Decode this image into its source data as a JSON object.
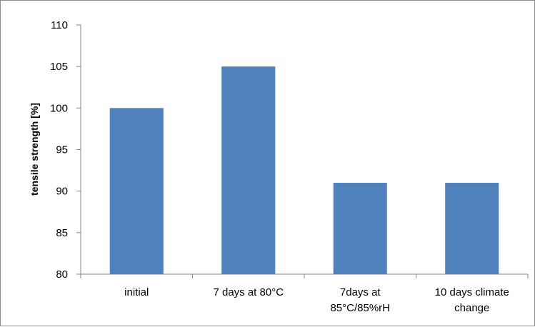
{
  "chart_data": {
    "type": "bar",
    "title": "",
    "xlabel": "",
    "ylabel": "tensile strength [%]",
    "categories": [
      [
        "initial"
      ],
      [
        "7 days at 80°C"
      ],
      [
        "7days at",
        "85°C/85%rH"
      ],
      [
        "10 days climate",
        "change"
      ]
    ],
    "values": [
      100,
      105,
      91,
      91
    ],
    "ylim": [
      80,
      110
    ],
    "yticks": [
      80,
      85,
      90,
      95,
      100,
      105,
      110
    ],
    "grid": false,
    "legend": "none",
    "colors": {
      "bar": "#4f81bd",
      "axis": "#868686",
      "frame": "#8c8c8c"
    }
  }
}
